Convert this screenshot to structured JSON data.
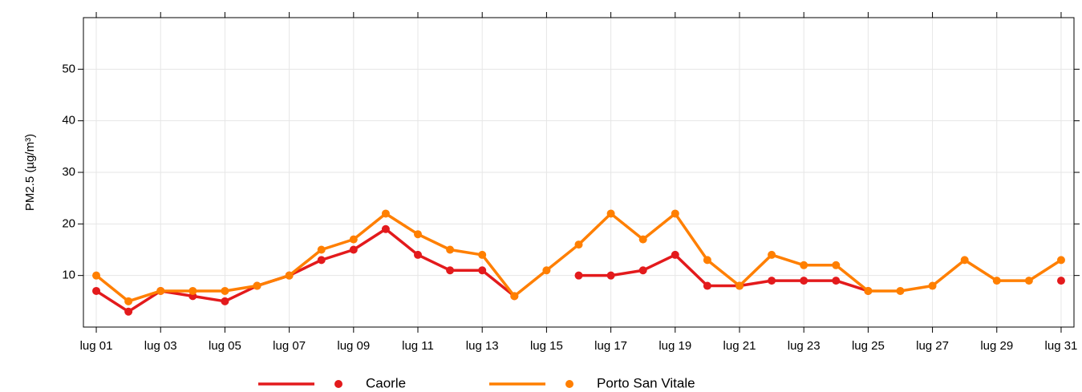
{
  "chart_data": {
    "type": "line",
    "y_label": "PM2.5 (µg/m³)",
    "categories": [
      "lug 01",
      null,
      "lug 03",
      null,
      "lug 05",
      null,
      "lug 07",
      null,
      "lug 09",
      null,
      "lug 11",
      null,
      "lug 13",
      null,
      "lug 15",
      null,
      "lug 17",
      null,
      "lug 19",
      null,
      "lug 21",
      null,
      "lug 23",
      null,
      "lug 25",
      null,
      "lug 27",
      null,
      "lug 29",
      null,
      "lug 31"
    ],
    "series": [
      {
        "name": "Caorle",
        "color": "#e31a1c",
        "values": [
          7,
          3,
          7,
          6,
          5,
          8,
          10,
          13,
          15,
          19,
          14,
          11,
          11,
          6,
          null,
          10,
          10,
          11,
          14,
          8,
          8,
          9,
          9,
          9,
          7,
          null,
          null,
          null,
          null,
          null,
          9
        ]
      },
      {
        "name": "Porto San Vitale",
        "color": "#ff7f00",
        "values": [
          10,
          5,
          7,
          7,
          7,
          8,
          10,
          15,
          17,
          22,
          18,
          15,
          14,
          6,
          11,
          16,
          22,
          17,
          22,
          13,
          8,
          14,
          12,
          12,
          7,
          7,
          8,
          13,
          9,
          9,
          13
        ]
      }
    ],
    "ylim": [
      0,
      60
    ],
    "yticks": [
      10,
      20,
      30,
      40,
      50
    ],
    "grid": true,
    "legend": "bottom"
  }
}
